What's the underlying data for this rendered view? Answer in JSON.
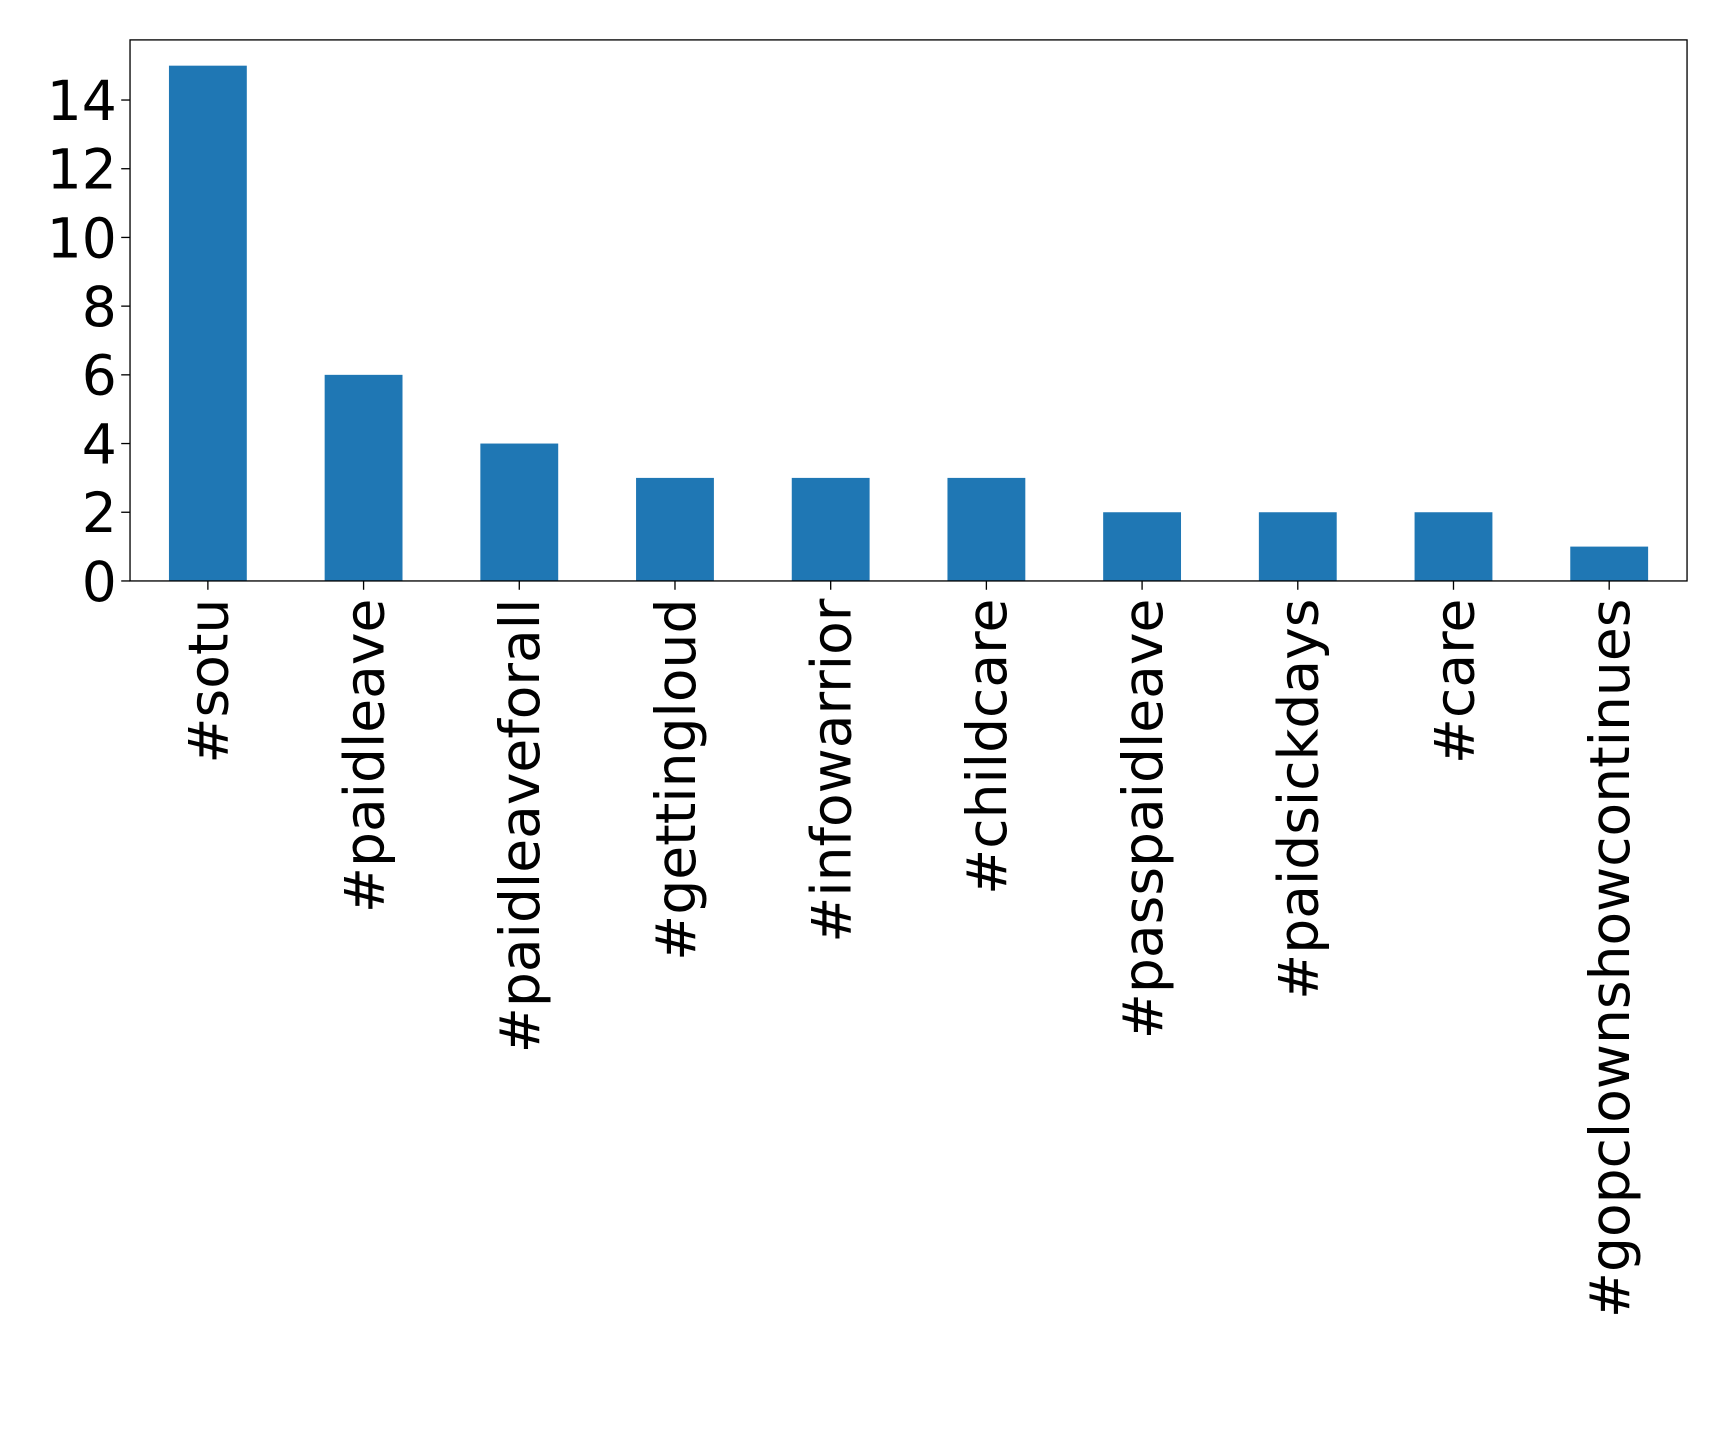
{
  "chart_data": {
    "type": "bar",
    "categories": [
      "#sotu",
      "#paidleave",
      "#paidleaveforall",
      "#gettingloud",
      "#infowarrior",
      "#childcare",
      "#passpaidleave",
      "#paidsickdays",
      "#care",
      "#gopclownshowcontinues"
    ],
    "values": [
      15,
      6,
      4,
      3,
      3,
      3,
      2,
      2,
      2,
      1
    ],
    "color": "#1f77b4",
    "ylim": [
      0,
      15.75
    ],
    "yticks": [
      0,
      2,
      4,
      6,
      8,
      10,
      12,
      14
    ],
    "grid": false
  }
}
